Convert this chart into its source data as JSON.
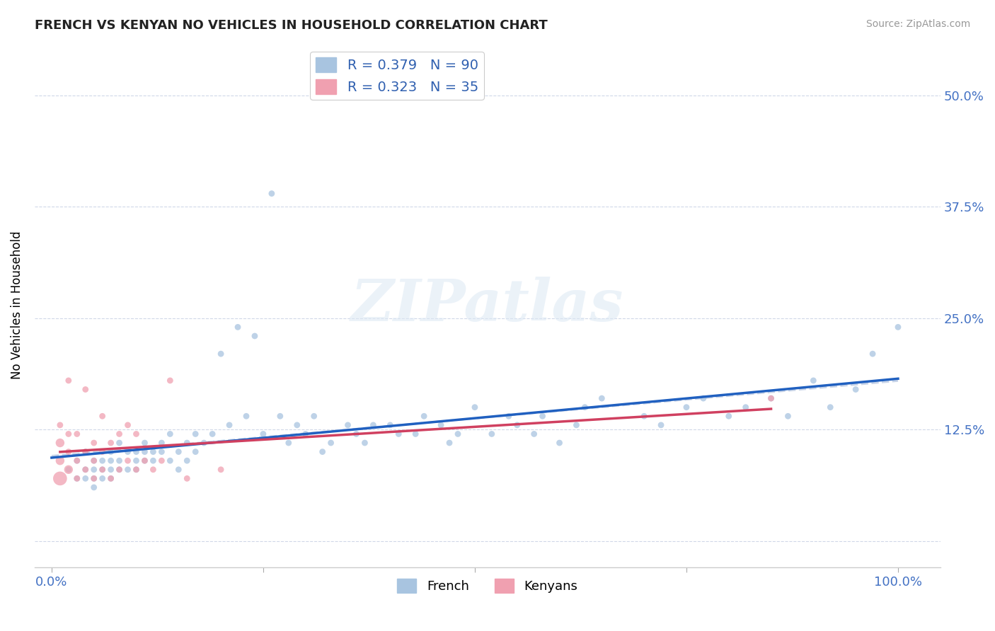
{
  "title": "FRENCH VS KENYAN NO VEHICLES IN HOUSEHOLD CORRELATION CHART",
  "source": "Source: ZipAtlas.com",
  "tick_color": "#4472c4",
  "ylabel": "No Vehicles in Household",
  "french_color": "#a8c4e0",
  "french_line_color": "#2060c0",
  "kenyan_color": "#f0a0b0",
  "kenyan_line_color": "#d04060",
  "overall_line_color": "#c8d4e8",
  "legend_french_label": "R = 0.379   N = 90",
  "legend_kenyan_label": "R = 0.323   N = 35",
  "watermark": "ZIPatlas",
  "bottom_legend_french": "French",
  "bottom_legend_kenyan": "Kenyans",
  "french_x": [
    0.02,
    0.03,
    0.03,
    0.04,
    0.04,
    0.04,
    0.05,
    0.05,
    0.05,
    0.05,
    0.06,
    0.06,
    0.06,
    0.07,
    0.07,
    0.07,
    0.07,
    0.08,
    0.08,
    0.08,
    0.09,
    0.09,
    0.1,
    0.1,
    0.1,
    0.11,
    0.11,
    0.11,
    0.12,
    0.12,
    0.13,
    0.13,
    0.14,
    0.14,
    0.15,
    0.15,
    0.16,
    0.16,
    0.17,
    0.17,
    0.18,
    0.19,
    0.2,
    0.21,
    0.22,
    0.23,
    0.24,
    0.25,
    0.26,
    0.27,
    0.28,
    0.29,
    0.3,
    0.31,
    0.32,
    0.33,
    0.35,
    0.36,
    0.37,
    0.38,
    0.4,
    0.41,
    0.43,
    0.44,
    0.46,
    0.47,
    0.48,
    0.5,
    0.52,
    0.54,
    0.55,
    0.57,
    0.58,
    0.6,
    0.62,
    0.63,
    0.65,
    0.7,
    0.72,
    0.75,
    0.77,
    0.8,
    0.82,
    0.85,
    0.87,
    0.9,
    0.92,
    0.95,
    0.97,
    1.0
  ],
  "french_y": [
    0.08,
    0.07,
    0.09,
    0.08,
    0.1,
    0.07,
    0.09,
    0.08,
    0.07,
    0.06,
    0.08,
    0.09,
    0.07,
    0.1,
    0.09,
    0.08,
    0.07,
    0.11,
    0.09,
    0.08,
    0.1,
    0.08,
    0.09,
    0.08,
    0.1,
    0.11,
    0.1,
    0.09,
    0.1,
    0.09,
    0.11,
    0.1,
    0.12,
    0.09,
    0.1,
    0.08,
    0.11,
    0.09,
    0.1,
    0.12,
    0.11,
    0.12,
    0.21,
    0.13,
    0.24,
    0.14,
    0.23,
    0.12,
    0.39,
    0.14,
    0.11,
    0.13,
    0.12,
    0.14,
    0.1,
    0.11,
    0.13,
    0.12,
    0.11,
    0.13,
    0.13,
    0.12,
    0.12,
    0.14,
    0.13,
    0.11,
    0.12,
    0.15,
    0.12,
    0.14,
    0.13,
    0.12,
    0.14,
    0.11,
    0.13,
    0.15,
    0.16,
    0.14,
    0.13,
    0.15,
    0.16,
    0.14,
    0.15,
    0.16,
    0.14,
    0.18,
    0.15,
    0.17,
    0.21,
    0.24
  ],
  "french_sizes": [
    40,
    40,
    40,
    40,
    40,
    40,
    40,
    40,
    40,
    40,
    40,
    40,
    40,
    40,
    40,
    40,
    40,
    40,
    40,
    40,
    40,
    40,
    40,
    40,
    40,
    40,
    40,
    40,
    40,
    40,
    40,
    40,
    40,
    40,
    40,
    40,
    40,
    40,
    40,
    40,
    40,
    40,
    40,
    40,
    40,
    40,
    40,
    40,
    40,
    40,
    40,
    40,
    40,
    40,
    40,
    40,
    40,
    40,
    40,
    40,
    40,
    40,
    40,
    40,
    40,
    40,
    40,
    40,
    40,
    40,
    40,
    40,
    40,
    40,
    40,
    40,
    40,
    40,
    40,
    40,
    40,
    40,
    40,
    40,
    40,
    40,
    40,
    40,
    40,
    40
  ],
  "kenyan_x": [
    0.01,
    0.01,
    0.01,
    0.01,
    0.02,
    0.02,
    0.02,
    0.02,
    0.03,
    0.03,
    0.03,
    0.04,
    0.04,
    0.04,
    0.05,
    0.05,
    0.05,
    0.06,
    0.06,
    0.06,
    0.07,
    0.07,
    0.08,
    0.08,
    0.09,
    0.09,
    0.1,
    0.1,
    0.11,
    0.12,
    0.13,
    0.14,
    0.16,
    0.2,
    0.85
  ],
  "kenyan_y": [
    0.07,
    0.09,
    0.11,
    0.13,
    0.08,
    0.1,
    0.12,
    0.18,
    0.07,
    0.09,
    0.12,
    0.08,
    0.1,
    0.17,
    0.07,
    0.09,
    0.11,
    0.08,
    0.1,
    0.14,
    0.07,
    0.11,
    0.08,
    0.12,
    0.09,
    0.13,
    0.08,
    0.12,
    0.09,
    0.08,
    0.09,
    0.18,
    0.07,
    0.08,
    0.16
  ],
  "kenyan_sizes": [
    200,
    80,
    80,
    40,
    80,
    40,
    40,
    40,
    40,
    40,
    40,
    40,
    40,
    40,
    40,
    40,
    40,
    40,
    40,
    40,
    40,
    40,
    40,
    40,
    40,
    40,
    40,
    40,
    40,
    40,
    40,
    40,
    40,
    40,
    40
  ],
  "xlim": [
    -0.02,
    1.05
  ],
  "ylim": [
    -0.03,
    0.56
  ],
  "x_ticks": [
    0.0,
    0.25,
    0.5,
    0.75,
    1.0
  ],
  "x_tick_labels": [
    "0.0%",
    "",
    "",
    "",
    "100.0%"
  ],
  "y_ticks": [
    0.0,
    0.125,
    0.25,
    0.375,
    0.5
  ],
  "y_tick_labels_right": [
    "",
    "12.5%",
    "25.0%",
    "37.5%",
    "50.0%"
  ]
}
